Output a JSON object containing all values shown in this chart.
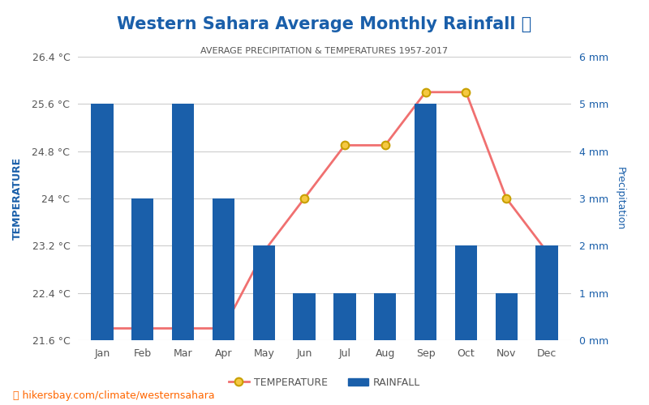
{
  "title": "Western Sahara Average Monthly Rainfall 🌧",
  "subtitle": "AVERAGE PRECIPITATION & TEMPERATURES 1957-2017",
  "months": [
    "Jan",
    "Feb",
    "Mar",
    "Apr",
    "May",
    "Jun",
    "Jul",
    "Aug",
    "Sep",
    "Oct",
    "Nov",
    "Dec"
  ],
  "temperature": [
    21.8,
    21.8,
    21.8,
    21.8,
    23.1,
    24.0,
    24.9,
    24.9,
    25.8,
    25.8,
    24.0,
    23.1
  ],
  "rainfall": [
    5,
    3,
    5,
    3,
    2,
    1,
    1,
    1,
    5,
    2,
    1,
    2
  ],
  "bar_color": "#1a5faa",
  "line_color": "#f07070",
  "marker_face": "#f5c842",
  "marker_edge": "#c8a000",
  "left_ylabel": "TEMPERATURE",
  "right_ylabel": "Precipitation",
  "left_yticks": [
    21.6,
    22.4,
    23.2,
    24.0,
    24.8,
    25.6,
    26.4
  ],
  "left_ylim": [
    21.6,
    26.4
  ],
  "right_yticks": [
    0,
    1,
    2,
    3,
    4,
    5,
    6
  ],
  "right_ylim": [
    0,
    6
  ],
  "right_ytick_labels": [
    "0 mm",
    "1 mm",
    "2 mm",
    "3 mm",
    "4 mm",
    "5 mm",
    "6 mm"
  ],
  "left_ytick_labels": [
    "21.6 °C",
    "22.4 °C",
    "23.2 °C",
    "24 °C",
    "24.8 °C",
    "25.6 °C",
    "26.4 °C"
  ],
  "title_color": "#1a5faa",
  "subtitle_color": "#555555",
  "axis_label_color": "#1a5faa",
  "tick_color": "#555555",
  "grid_color": "#cccccc",
  "footer_text": "hikersbay.com/climate/westernsahara",
  "footer_color": "#ff6600",
  "legend_temp_label": "TEMPERATURE",
  "legend_rain_label": "RAINFALL",
  "background_color": "#ffffff"
}
